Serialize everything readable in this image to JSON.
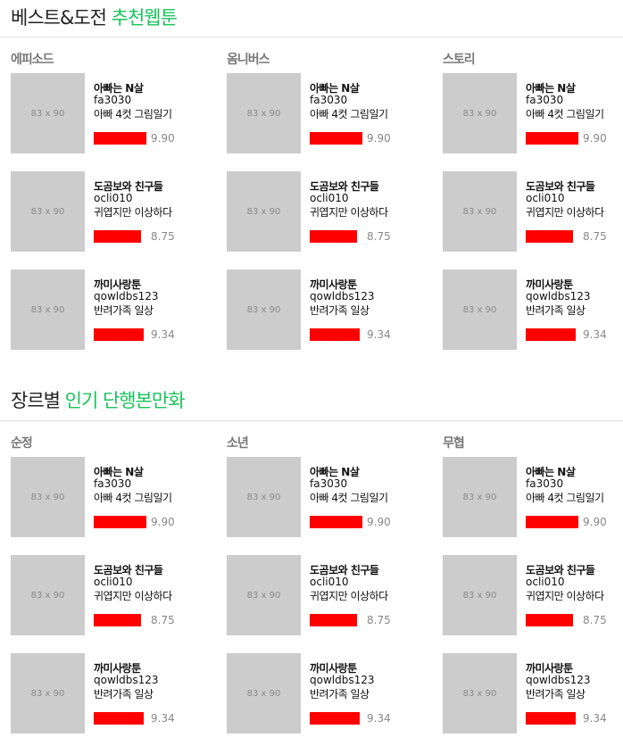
{
  "thumb_label": "83 x 90",
  "colors": {
    "accent": "#19c35c",
    "rating_bar": "#ff0000"
  },
  "sections": [
    {
      "title_main": "베스트&도전",
      "title_accent": "추천웹툰",
      "columns": [
        {
          "label": "에피소드",
          "items": [
            {
              "title": "아빠는 N살",
              "author": "fa3030",
              "desc": "아빠 4컷 그림일기",
              "score": "9.90",
              "rating": 0.99
            },
            {
              "title": "도곰보와 친구들",
              "author": "ocli010",
              "desc": "귀엽지만 이상하다",
              "score": "8.75",
              "rating": 0.875
            },
            {
              "title": "까미사랑툰",
              "author": "qowldbs123",
              "desc": "반려가족 일상",
              "score": "9.34",
              "rating": 0.934
            }
          ]
        },
        {
          "label": "옴니버스",
          "items": [
            {
              "title": "아빠는 N살",
              "author": "fa3030",
              "desc": "아빠 4컷 그림일기",
              "score": "9.90",
              "rating": 0.99
            },
            {
              "title": "도곰보와 친구들",
              "author": "ocli010",
              "desc": "귀엽지만 이상하다",
              "score": "8.75",
              "rating": 0.875
            },
            {
              "title": "까미사랑툰",
              "author": "qowldbs123",
              "desc": "반려가족 일상",
              "score": "9.34",
              "rating": 0.934
            }
          ]
        },
        {
          "label": "스토리",
          "items": [
            {
              "title": "아빠는 N살",
              "author": "fa3030",
              "desc": "아빠 4컷 그림일기",
              "score": "9.90",
              "rating": 0.99
            },
            {
              "title": "도곰보와 친구들",
              "author": "ocli010",
              "desc": "귀엽지만 이상하다",
              "score": "8.75",
              "rating": 0.875
            },
            {
              "title": "까미사랑툰",
              "author": "qowldbs123",
              "desc": "반려가족 일상",
              "score": "9.34",
              "rating": 0.934
            }
          ]
        }
      ]
    },
    {
      "title_main": "장르별",
      "title_accent": "인기 단행본만화",
      "columns": [
        {
          "label": "순정",
          "items": [
            {
              "title": "아빠는 N살",
              "author": "fa3030",
              "desc": "아빠 4컷 그림일기",
              "score": "9.90",
              "rating": 0.99
            },
            {
              "title": "도곰보와 친구들",
              "author": "ocli010",
              "desc": "귀엽지만 이상하다",
              "score": "8.75",
              "rating": 0.875
            },
            {
              "title": "까미사랑툰",
              "author": "qowldbs123",
              "desc": "반려가족 일상",
              "score": "9.34",
              "rating": 0.934
            }
          ]
        },
        {
          "label": "소년",
          "items": [
            {
              "title": "아빠는 N살",
              "author": "fa3030",
              "desc": "아빠 4컷 그림일기",
              "score": "9.90",
              "rating": 0.99
            },
            {
              "title": "도곰보와 친구들",
              "author": "ocli010",
              "desc": "귀엽지만 이상하다",
              "score": "8.75",
              "rating": 0.875
            },
            {
              "title": "까미사랑툰",
              "author": "qowldbs123",
              "desc": "반려가족 일상",
              "score": "9.34",
              "rating": 0.934
            }
          ]
        },
        {
          "label": "무협",
          "items": [
            {
              "title": "아빠는 N살",
              "author": "fa3030",
              "desc": "아빠 4컷 그림일기",
              "score": "9.90",
              "rating": 0.99
            },
            {
              "title": "도곰보와 친구들",
              "author": "ocli010",
              "desc": "귀엽지만 이상하다",
              "score": "8.75",
              "rating": 0.875
            },
            {
              "title": "까미사랑툰",
              "author": "qowldbs123",
              "desc": "반려가족 일상",
              "score": "9.34",
              "rating": 0.934
            }
          ]
        }
      ]
    }
  ]
}
